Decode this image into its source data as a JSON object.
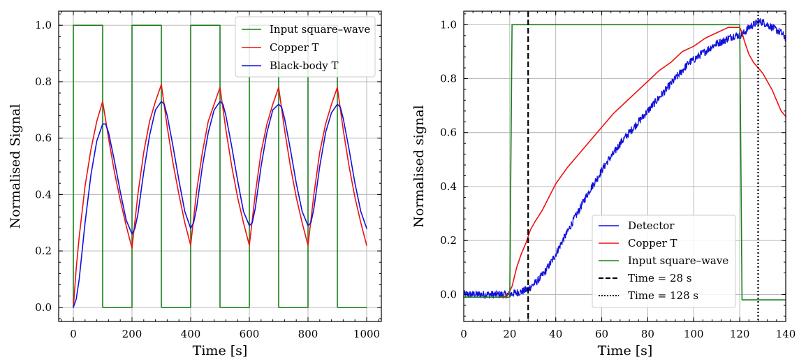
{
  "colors": {
    "green": "#1b7f1b",
    "red": "#ee1111",
    "blue": "#1111dd",
    "black": "#000000"
  },
  "chart_data": [
    {
      "type": "line",
      "xlabel": "Time [s]",
      "ylabel": "Normalised Signal",
      "xlim": [
        -50,
        1050
      ],
      "ylim": [
        -0.05,
        1.05
      ],
      "xticks": [
        0,
        200,
        400,
        600,
        800,
        1000
      ],
      "yticks": [
        0.0,
        0.2,
        0.4,
        0.6,
        0.8,
        1.0
      ],
      "xtick_labels": [
        "0",
        "200",
        "400",
        "600",
        "800",
        "1000"
      ],
      "ytick_labels": [
        "0.0",
        "0.2",
        "0.4",
        "0.6",
        "0.8",
        "1.0"
      ],
      "grid": true,
      "legend_position": "top-right",
      "legend": [
        {
          "label": "Input square–wave",
          "color": "#1b7f1b",
          "style": "solid"
        },
        {
          "label": "Copper T",
          "color": "#ee1111",
          "style": "solid"
        },
        {
          "label": "Black-body T",
          "color": "#1111dd",
          "style": "solid"
        }
      ],
      "series": [
        {
          "name": "Input square–wave",
          "color": "#1b7f1b",
          "x": [
            0,
            0,
            100,
            100,
            200,
            200,
            300,
            300,
            400,
            400,
            500,
            500,
            600,
            600,
            700,
            700,
            800,
            800,
            900,
            900,
            1000
          ],
          "y": [
            0,
            1,
            1,
            0,
            0,
            1,
            1,
            0,
            0,
            1,
            1,
            0,
            0,
            1,
            1,
            0,
            0,
            1,
            1,
            0,
            0
          ]
        },
        {
          "name": "Copper T",
          "color": "#ee1111",
          "x": [
            0,
            10,
            20,
            40,
            60,
            80,
            100,
            120,
            140,
            160,
            180,
            200,
            220,
            240,
            260,
            280,
            300,
            320,
            340,
            360,
            380,
            400,
            420,
            440,
            460,
            480,
            500,
            520,
            540,
            560,
            580,
            600,
            620,
            640,
            660,
            680,
            700,
            720,
            740,
            760,
            780,
            800,
            820,
            840,
            860,
            880,
            900,
            920,
            940,
            960,
            980,
            1000
          ],
          "y": [
            0.0,
            0.14,
            0.25,
            0.43,
            0.56,
            0.66,
            0.73,
            0.6,
            0.48,
            0.38,
            0.29,
            0.21,
            0.4,
            0.55,
            0.66,
            0.73,
            0.79,
            0.64,
            0.51,
            0.4,
            0.3,
            0.22,
            0.41,
            0.55,
            0.66,
            0.72,
            0.78,
            0.63,
            0.5,
            0.39,
            0.3,
            0.22,
            0.4,
            0.55,
            0.65,
            0.72,
            0.78,
            0.63,
            0.5,
            0.39,
            0.3,
            0.22,
            0.4,
            0.55,
            0.65,
            0.72,
            0.78,
            0.63,
            0.5,
            0.39,
            0.3,
            0.22
          ]
        },
        {
          "name": "Black-body T",
          "color": "#1111dd",
          "x": [
            0,
            10,
            20,
            40,
            60,
            80,
            100,
            110,
            120,
            140,
            160,
            180,
            200,
            210,
            220,
            240,
            260,
            280,
            300,
            310,
            320,
            340,
            360,
            380,
            400,
            410,
            420,
            440,
            460,
            480,
            500,
            510,
            520,
            540,
            560,
            580,
            600,
            610,
            620,
            640,
            660,
            680,
            700,
            710,
            720,
            740,
            760,
            780,
            800,
            810,
            820,
            840,
            860,
            880,
            900,
            910,
            920,
            940,
            960,
            980,
            1000
          ],
          "y": [
            0.0,
            0.03,
            0.1,
            0.3,
            0.47,
            0.59,
            0.65,
            0.65,
            0.62,
            0.52,
            0.41,
            0.31,
            0.26,
            0.28,
            0.33,
            0.48,
            0.61,
            0.7,
            0.73,
            0.72,
            0.68,
            0.57,
            0.45,
            0.34,
            0.28,
            0.3,
            0.35,
            0.5,
            0.62,
            0.7,
            0.73,
            0.72,
            0.68,
            0.57,
            0.45,
            0.34,
            0.29,
            0.3,
            0.35,
            0.5,
            0.62,
            0.7,
            0.72,
            0.71,
            0.67,
            0.56,
            0.44,
            0.34,
            0.29,
            0.3,
            0.35,
            0.5,
            0.62,
            0.69,
            0.72,
            0.71,
            0.67,
            0.56,
            0.44,
            0.34,
            0.28
          ]
        }
      ]
    },
    {
      "type": "line",
      "xlabel": "Time [s]",
      "ylabel": "Normalised signal",
      "xlim": [
        0,
        140
      ],
      "ylim": [
        -0.1,
        1.05
      ],
      "xticks": [
        0,
        20,
        40,
        60,
        80,
        100,
        120,
        140
      ],
      "yticks": [
        0.0,
        0.2,
        0.4,
        0.6,
        0.8,
        1.0
      ],
      "xtick_labels": [
        "0",
        "20",
        "40",
        "60",
        "80",
        "100",
        "120",
        "140"
      ],
      "ytick_labels": [
        "0.0",
        "0.2",
        "0.4",
        "0.6",
        "0.8",
        "1.0"
      ],
      "grid": true,
      "legend_position": "lower-right",
      "legend": [
        {
          "label": "Detector",
          "color": "#1111dd",
          "style": "solid"
        },
        {
          "label": "Copper T",
          "color": "#ee1111",
          "style": "solid"
        },
        {
          "label": "Input square–wave",
          "color": "#1b7f1b",
          "style": "solid"
        },
        {
          "label": "Time = 28 s",
          "color": "#000000",
          "style": "dashed"
        },
        {
          "label": "Time = 128 s",
          "color": "#000000",
          "style": "dotted"
        }
      ],
      "vlines": [
        {
          "x": 28,
          "style": "dashed",
          "color": "#000000"
        },
        {
          "x": 128,
          "style": "dotted",
          "color": "#000000"
        }
      ],
      "series": [
        {
          "name": "Detector",
          "color": "#1111dd",
          "noisy": true,
          "x": [
            0,
            5,
            10,
            15,
            20,
            22,
            25,
            28,
            30,
            32,
            35,
            38,
            40,
            43,
            45,
            48,
            50,
            53,
            55,
            58,
            60,
            63,
            65,
            68,
            70,
            73,
            75,
            78,
            80,
            83,
            85,
            88,
            90,
            93,
            95,
            98,
            100,
            103,
            105,
            108,
            110,
            113,
            115,
            118,
            120,
            122,
            124,
            126,
            128,
            130,
            132,
            134,
            136,
            138,
            140
          ],
          "y": [
            0.0,
            0.0,
            0.0,
            0.0,
            0.0,
            0.005,
            0.01,
            0.02,
            0.035,
            0.05,
            0.08,
            0.12,
            0.15,
            0.2,
            0.23,
            0.28,
            0.31,
            0.36,
            0.39,
            0.43,
            0.46,
            0.5,
            0.52,
            0.56,
            0.58,
            0.61,
            0.63,
            0.66,
            0.68,
            0.71,
            0.73,
            0.76,
            0.78,
            0.81,
            0.83,
            0.86,
            0.87,
            0.89,
            0.9,
            0.92,
            0.93,
            0.94,
            0.95,
            0.96,
            0.96,
            0.97,
            0.99,
            1.0,
            1.01,
            1.01,
            1.0,
            0.99,
            0.98,
            0.97,
            0.95
          ]
        },
        {
          "name": "Copper T",
          "color": "#ee1111",
          "noisy": false,
          "x": [
            0,
            5,
            10,
            15,
            19,
            21,
            23,
            25,
            27,
            29,
            31,
            34,
            37,
            40,
            45,
            50,
            55,
            60,
            65,
            70,
            75,
            80,
            85,
            90,
            95,
            100,
            105,
            110,
            115,
            118,
            120,
            121,
            122,
            124,
            126,
            128,
            130,
            132,
            134,
            136,
            138,
            140
          ],
          "y": [
            -0.01,
            -0.01,
            -0.01,
            -0.01,
            -0.005,
            0.03,
            0.1,
            0.15,
            0.19,
            0.24,
            0.27,
            0.31,
            0.36,
            0.41,
            0.47,
            0.52,
            0.57,
            0.62,
            0.67,
            0.71,
            0.75,
            0.79,
            0.83,
            0.86,
            0.9,
            0.92,
            0.95,
            0.97,
            0.99,
            0.99,
            0.99,
            0.97,
            0.94,
            0.89,
            0.86,
            0.84,
            0.82,
            0.79,
            0.76,
            0.72,
            0.68,
            0.66
          ]
        },
        {
          "name": "Input square–wave",
          "color": "#1b7f1b",
          "noisy": false,
          "x": [
            0,
            20,
            21,
            120,
            121,
            140
          ],
          "y": [
            -0.01,
            -0.01,
            1.0,
            1.0,
            -0.02,
            -0.02
          ]
        }
      ]
    }
  ]
}
